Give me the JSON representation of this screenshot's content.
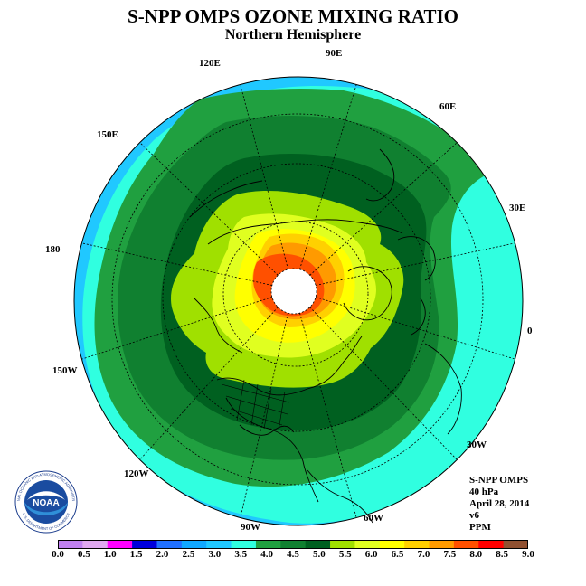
{
  "title": "S-NPP OMPS OZONE MIXING RATIO",
  "subtitle": "Northern Hemisphere",
  "longitude_labels": [
    {
      "key": "90e",
      "text": "90E"
    },
    {
      "key": "120e",
      "text": "120E"
    },
    {
      "key": "60e",
      "text": "60E"
    },
    {
      "key": "150e",
      "text": "150E"
    },
    {
      "key": "30e",
      "text": "30E"
    },
    {
      "key": "180",
      "text": "180"
    },
    {
      "key": "0",
      "text": "0"
    },
    {
      "key": "150w",
      "text": "150W"
    },
    {
      "key": "30w",
      "text": "30W"
    },
    {
      "key": "120w",
      "text": "120W"
    },
    {
      "key": "60w",
      "text": "60W"
    },
    {
      "key": "90w",
      "text": "90W"
    }
  ],
  "info": {
    "instrument": "S-NPP OMPS",
    "level": "40 hPa",
    "date": "April 28, 2014",
    "version": "v6",
    "units": "PPM"
  },
  "logo": {
    "text": "NOAA",
    "ring_text": "NATIONAL OCEANIC AND ATMOSPHERIC ADMINISTRATION",
    "ring_text_bottom": "U.S. DEPARTMENT OF COMMERCE"
  },
  "colorbar": {
    "tick_labels": [
      "0.0",
      "0.5",
      "1.0",
      "1.5",
      "2.0",
      "2.5",
      "3.0",
      "3.5",
      "4.0",
      "4.5",
      "5.0",
      "5.5",
      "6.0",
      "6.5",
      "7.0",
      "7.5",
      "8.0",
      "8.5",
      "9.0"
    ],
    "colors": [
      "#c080f0",
      "#e0a8f0",
      "#ff00ff",
      "#0000dd",
      "#2070ff",
      "#10a8ff",
      "#20c8ff",
      "#30ffe0",
      "#20a040",
      "#108030",
      "#006020",
      "#a0e000",
      "#e0ff20",
      "#ffff00",
      "#ffd000",
      "#ff9a00",
      "#ff5000",
      "#ff0000",
      "#905030"
    ]
  },
  "map_colors": {
    "c3_0": "#20c8ff",
    "c3_5": "#30ffe0",
    "c4_0": "#20a040",
    "c4_5": "#108030",
    "c5_0": "#006020",
    "c5_5": "#a0e000",
    "c6_0": "#e0ff20",
    "c6_5": "#ffff00",
    "c7_0": "#ffd000",
    "c7_5": "#ff9a00",
    "c8_0": "#ff5000",
    "pole": "#ffffff"
  }
}
